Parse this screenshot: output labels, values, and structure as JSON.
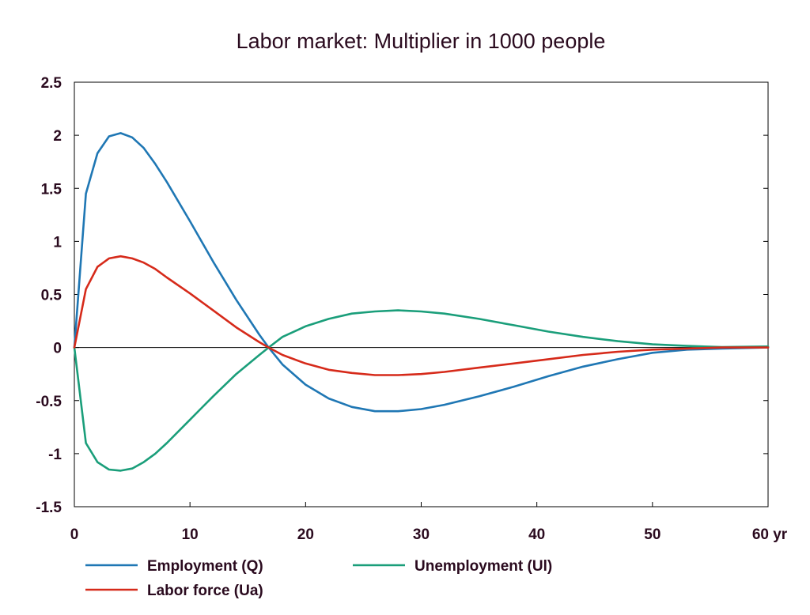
{
  "chart_data": {
    "type": "line",
    "title": "Labor market: Multiplier in 1000 people",
    "xlabel": "",
    "ylabel": "",
    "x_unit_label": "yr",
    "xlim": [
      0,
      60
    ],
    "ylim": [
      -1.5,
      2.5
    ],
    "x_ticks": [
      0,
      10,
      20,
      30,
      40,
      50,
      60
    ],
    "x_tick_labels": [
      "0",
      "10",
      "20",
      "30",
      "40",
      "50",
      "60 yr"
    ],
    "y_ticks": [
      -1.5,
      -1,
      -0.5,
      0,
      0.5,
      1,
      1.5,
      2,
      2.5
    ],
    "y_tick_labels": [
      "-1.5",
      "-1",
      "-0.5",
      "0",
      "0.5",
      "1",
      "1.5",
      "2",
      "2.5"
    ],
    "grid": false,
    "zero_line": true,
    "legend_position": "bottom",
    "series": [
      {
        "name": "Employment (Q)",
        "color": "#1f77b4",
        "x": [
          0,
          1,
          2,
          3,
          4,
          5,
          6,
          7,
          8,
          10,
          12,
          14,
          16,
          16.8,
          18,
          20,
          22,
          24,
          26,
          28,
          30,
          32,
          35,
          38,
          41,
          44,
          47,
          50,
          53,
          56,
          60
        ],
        "values": [
          0,
          1.45,
          1.83,
          1.99,
          2.02,
          1.98,
          1.88,
          1.73,
          1.56,
          1.19,
          0.81,
          0.45,
          0.12,
          0,
          -0.16,
          -0.35,
          -0.48,
          -0.56,
          -0.6,
          -0.6,
          -0.58,
          -0.54,
          -0.46,
          -0.37,
          -0.27,
          -0.18,
          -0.11,
          -0.05,
          -0.02,
          -0.01,
          0
        ]
      },
      {
        "name": "Unemployment (Ul)",
        "color": "#1a9e7a",
        "x": [
          0,
          1,
          2,
          3,
          4,
          5,
          6,
          7,
          8,
          10,
          12,
          14,
          16,
          16.8,
          18,
          20,
          22,
          24,
          26,
          28,
          30,
          32,
          35,
          38,
          41,
          44,
          47,
          50,
          53,
          56,
          60
        ],
        "values": [
          0,
          -0.9,
          -1.08,
          -1.15,
          -1.16,
          -1.14,
          -1.08,
          -1.0,
          -0.9,
          -0.68,
          -0.46,
          -0.25,
          -0.07,
          0,
          0.1,
          0.2,
          0.27,
          0.32,
          0.34,
          0.35,
          0.34,
          0.32,
          0.27,
          0.21,
          0.15,
          0.1,
          0.06,
          0.03,
          0.015,
          0.005,
          0.01
        ]
      },
      {
        "name": "Labor force (Ua)",
        "color": "#d62a1a",
        "x": [
          0,
          1,
          2,
          3,
          4,
          5,
          6,
          7,
          8,
          10,
          12,
          14,
          16,
          16.8,
          18,
          20,
          22,
          24,
          26,
          28,
          30,
          32,
          35,
          38,
          41,
          44,
          47,
          50,
          53,
          56,
          60
        ],
        "values": [
          0,
          0.55,
          0.76,
          0.84,
          0.86,
          0.84,
          0.8,
          0.74,
          0.66,
          0.51,
          0.35,
          0.19,
          0.05,
          0,
          -0.07,
          -0.15,
          -0.21,
          -0.24,
          -0.26,
          -0.26,
          -0.25,
          -0.23,
          -0.19,
          -0.15,
          -0.11,
          -0.07,
          -0.04,
          -0.02,
          -0.01,
          0,
          0
        ]
      }
    ]
  }
}
